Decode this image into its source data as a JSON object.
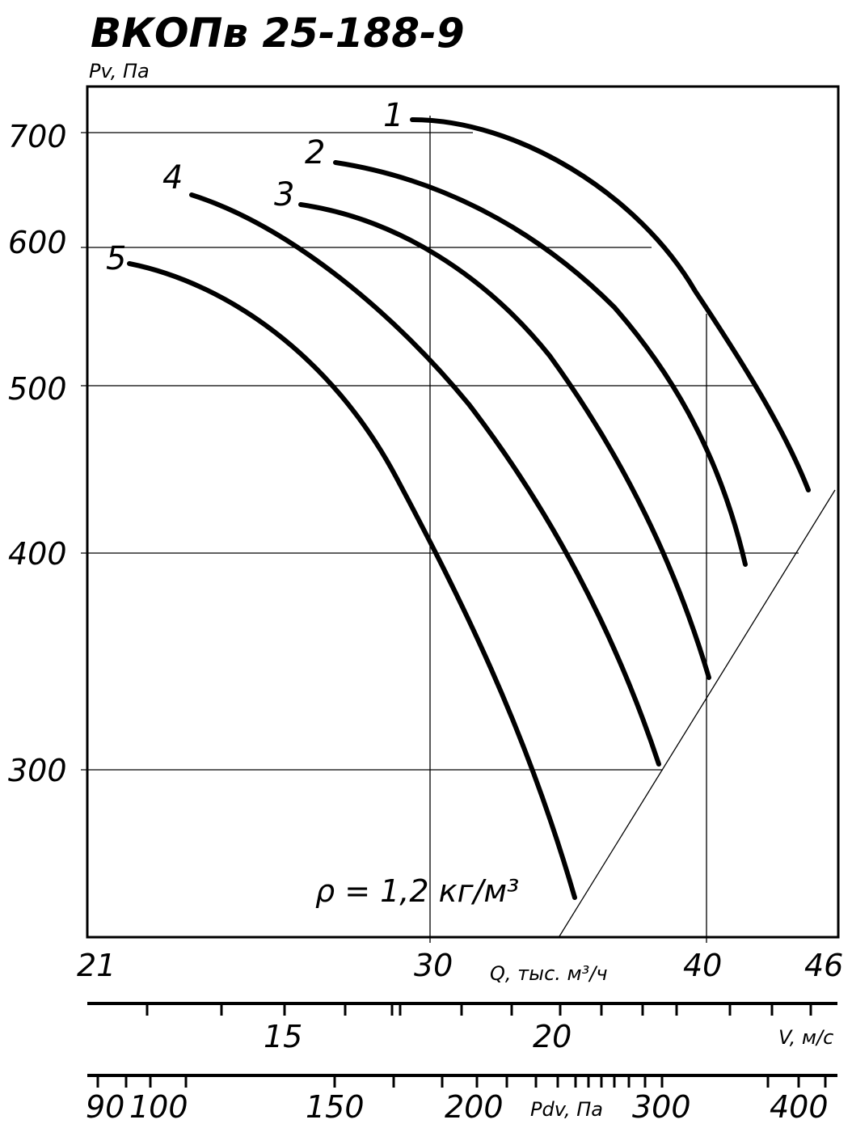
{
  "colors": {
    "ink": "#000000",
    "background": "#ffffff"
  },
  "chart_data": {
    "type": "line",
    "title": "ВКОПв 25-188-9",
    "ylabel": "Pv, Па",
    "xlabel": "Q, тыс. м³/ч",
    "x_scale": "log",
    "y_scale": "log",
    "xlim": [
      21,
      46
    ],
    "ylim": [
      260,
      760
    ],
    "x_ticks": [
      21,
      30,
      40,
      46
    ],
    "y_ticks": [
      300,
      400,
      500,
      600,
      700
    ],
    "grid": true,
    "annotation": "ρ = 1,2 кг/м³",
    "series": [
      {
        "name": "1",
        "x": [
          29.9,
          31.0,
          33.0,
          35.5,
          38.0,
          40.0,
          42.0,
          43.5,
          45.1
        ],
        "y": [
          712,
          708,
          690,
          656,
          613,
          564,
          508,
          468,
          437
        ]
      },
      {
        "name": "2",
        "x": [
          27.6,
          29.0,
          31.0,
          33.0,
          35.0,
          37.0,
          39.0,
          40.5,
          42.5
        ],
        "y": [
          680,
          670,
          648,
          614,
          572,
          524,
          470,
          436,
          392
        ]
      },
      {
        "name": "3",
        "x": [
          25.9,
          27.0,
          28.5,
          30.0,
          32.0,
          34.0,
          36.5,
          38.5,
          40.2
        ],
        "y": [
          637,
          630,
          615,
          593,
          555,
          507,
          438,
          386,
          340
        ]
      },
      {
        "name": "4",
        "x": [
          22.9,
          24.0,
          25.5,
          27.0,
          29.0,
          31.0,
          33.5,
          35.5,
          38.0
        ],
        "y": [
          645,
          635,
          612,
          583,
          537,
          481,
          406,
          356,
          302
        ]
      },
      {
        "name": "5",
        "x": [
          21.8,
          23.0,
          24.5,
          26.0,
          27.5,
          29.0,
          31.0,
          32.5,
          34.0,
          35.2
        ],
        "y": [
          587,
          577,
          554,
          524,
          489,
          448,
          392,
          346,
          305,
          272
        ]
      }
    ],
    "secondary_axes": [
      {
        "label": "V, м/с",
        "ticks": [
          "15",
          "20"
        ]
      },
      {
        "label": "Pdv, Па",
        "ticks": [
          "90",
          "100",
          "150",
          "200",
          "300",
          "400"
        ]
      }
    ]
  }
}
